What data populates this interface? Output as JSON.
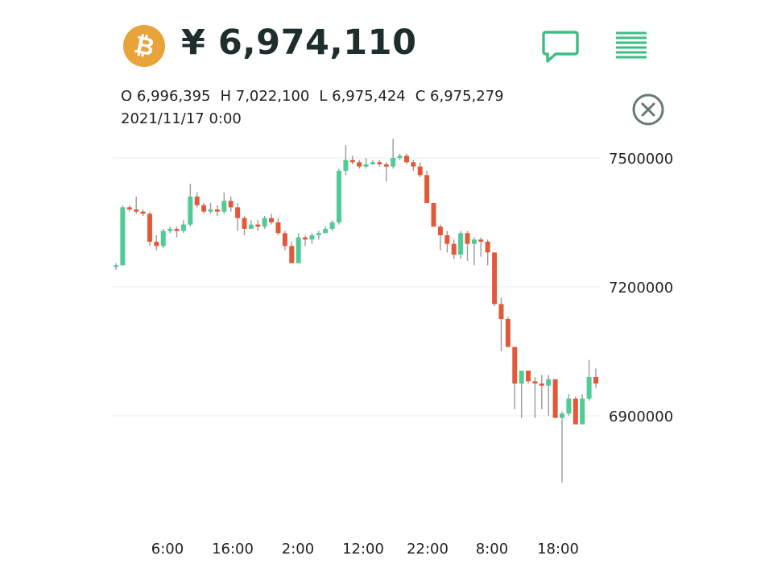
{
  "header": {
    "coin_symbol": "₿",
    "coin_color": "#e8a33a",
    "price": "¥ 6,974,110",
    "icons": [
      "chat-icon",
      "menu-icon"
    ]
  },
  "ohlc": {
    "open": "O 6,996,395",
    "high": "H 7,022,100",
    "low": "L 6,975,424",
    "close": "C 6,975,279",
    "datetime": "2021/11/17 0:00"
  },
  "colors": {
    "up": "#4fcb96",
    "down": "#e4583a",
    "accent": "#3dbd85"
  },
  "chart_data": {
    "type": "candlestick",
    "yticks": [
      7500000,
      7200000,
      6900000
    ],
    "xticks": [
      "6:00",
      "16:00",
      "2:00",
      "12:00",
      "22:00",
      "8:00",
      "18:00"
    ],
    "ylim": [
      6740000,
      7580000
    ],
    "candles": [
      [
        7250000,
        7250000,
        7255000,
        7240000
      ],
      [
        7250000,
        7385000,
        7390000,
        7250000
      ],
      [
        7385000,
        7380000,
        7390000,
        7375000
      ],
      [
        7380000,
        7375000,
        7410000,
        7370000
      ],
      [
        7375000,
        7370000,
        7380000,
        7365000
      ],
      [
        7370000,
        7305000,
        7375000,
        7295000
      ],
      [
        7305000,
        7295000,
        7320000,
        7285000
      ],
      [
        7295000,
        7330000,
        7335000,
        7290000
      ],
      [
        7330000,
        7335000,
        7340000,
        7325000
      ],
      [
        7335000,
        7330000,
        7340000,
        7315000
      ],
      [
        7330000,
        7345000,
        7355000,
        7325000
      ],
      [
        7345000,
        7410000,
        7440000,
        7340000
      ],
      [
        7410000,
        7390000,
        7420000,
        7385000
      ],
      [
        7390000,
        7375000,
        7395000,
        7370000
      ],
      [
        7375000,
        7380000,
        7395000,
        7370000
      ],
      [
        7380000,
        7375000,
        7390000,
        7365000
      ],
      [
        7375000,
        7400000,
        7420000,
        7370000
      ],
      [
        7400000,
        7385000,
        7410000,
        7375000
      ],
      [
        7385000,
        7360000,
        7395000,
        7330000
      ],
      [
        7360000,
        7335000,
        7365000,
        7320000
      ],
      [
        7335000,
        7345000,
        7355000,
        7335000
      ],
      [
        7345000,
        7340000,
        7355000,
        7330000
      ],
      [
        7340000,
        7360000,
        7365000,
        7335000
      ],
      [
        7360000,
        7350000,
        7370000,
        7345000
      ],
      [
        7350000,
        7325000,
        7360000,
        7320000
      ],
      [
        7325000,
        7295000,
        7330000,
        7285000
      ],
      [
        7295000,
        7255000,
        7305000,
        7255000
      ],
      [
        7255000,
        7315000,
        7325000,
        7255000
      ],
      [
        7315000,
        7310000,
        7320000,
        7295000
      ],
      [
        7310000,
        7320000,
        7325000,
        7300000
      ],
      [
        7320000,
        7325000,
        7330000,
        7310000
      ],
      [
        7325000,
        7335000,
        7340000,
        7325000
      ],
      [
        7335000,
        7350000,
        7355000,
        7330000
      ],
      [
        7350000,
        7470000,
        7475000,
        7345000
      ],
      [
        7470000,
        7495000,
        7530000,
        7460000
      ],
      [
        7495000,
        7490000,
        7505000,
        7485000
      ],
      [
        7490000,
        7480000,
        7495000,
        7475000
      ],
      [
        7480000,
        7485000,
        7500000,
        7475000
      ],
      [
        7485000,
        7490000,
        7495000,
        7485000
      ],
      [
        7490000,
        7485000,
        7495000,
        7480000
      ],
      [
        7485000,
        7480000,
        7490000,
        7445000
      ],
      [
        7480000,
        7500000,
        7545000,
        7475000
      ],
      [
        7500000,
        7505000,
        7510000,
        7495000
      ],
      [
        7505000,
        7490000,
        7510000,
        7485000
      ],
      [
        7490000,
        7480000,
        7495000,
        7470000
      ],
      [
        7480000,
        7460000,
        7490000,
        7455000
      ],
      [
        7460000,
        7395000,
        7470000,
        7395000
      ],
      [
        7395000,
        7340000,
        7395000,
        7340000
      ],
      [
        7340000,
        7320000,
        7345000,
        7285000
      ],
      [
        7320000,
        7300000,
        7330000,
        7280000
      ],
      [
        7300000,
        7275000,
        7310000,
        7265000
      ],
      [
        7275000,
        7325000,
        7330000,
        7265000
      ],
      [
        7325000,
        7300000,
        7330000,
        7260000
      ],
      [
        7300000,
        7310000,
        7315000,
        7250000
      ],
      [
        7310000,
        7305000,
        7315000,
        7270000
      ],
      [
        7305000,
        7280000,
        7310000,
        7250000
      ],
      [
        7280000,
        7160000,
        7280000,
        7155000
      ],
      [
        7160000,
        7125000,
        7175000,
        7050000
      ],
      [
        7125000,
        7060000,
        7130000,
        7060000
      ],
      [
        7060000,
        6975000,
        7060000,
        6915000
      ],
      [
        6975000,
        7005000,
        7005000,
        6895000
      ],
      [
        7005000,
        6980000,
        7005000,
        6975000
      ],
      [
        6980000,
        6975000,
        6990000,
        6895000
      ],
      [
        6975000,
        6970000,
        6995000,
        6915000
      ],
      [
        6970000,
        6985000,
        6995000,
        6900000
      ],
      [
        6985000,
        6895000,
        6985000,
        6895000
      ],
      [
        6895000,
        6905000,
        6910000,
        6745000
      ],
      [
        6905000,
        6940000,
        6950000,
        6900000
      ],
      [
        6940000,
        6880000,
        6945000,
        6880000
      ],
      [
        6880000,
        6940000,
        6950000,
        6880000
      ],
      [
        6940000,
        6990000,
        7030000,
        6935000
      ],
      [
        6990000,
        6975000,
        7010000,
        6965000
      ]
    ]
  }
}
